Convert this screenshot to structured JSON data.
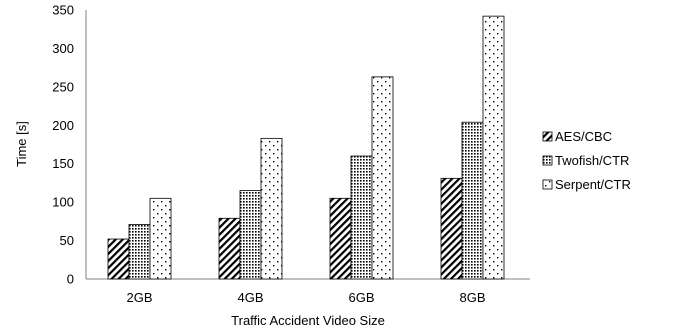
{
  "chart_data": {
    "type": "bar",
    "title": "",
    "xlabel": "Traffic Accident Video Size",
    "ylabel": "Time [s]",
    "ylim": [
      0,
      350
    ],
    "yticks": [
      "0",
      "50",
      "100",
      "150",
      "200",
      "250",
      "300",
      "350"
    ],
    "categories": [
      "2GB",
      "4GB",
      "6GB",
      "8GB"
    ],
    "series": [
      {
        "name": "AES/CBC",
        "pattern": "diagonal-hatch",
        "values": [
          52,
          79,
          105,
          131
        ]
      },
      {
        "name": "Twofish/CTR",
        "pattern": "dense-dots",
        "values": [
          71,
          115,
          160,
          204
        ]
      },
      {
        "name": "Serpent/CTR",
        "pattern": "sparse-dots",
        "values": [
          105,
          183,
          263,
          342
        ]
      }
    ],
    "legend_position": "right",
    "grid": false
  }
}
